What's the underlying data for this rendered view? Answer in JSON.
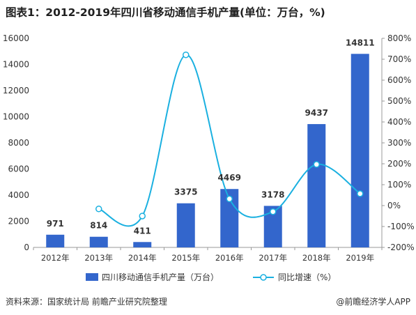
{
  "title": "图表1：2012-2019年四川省移动通信手机产量(单位：万台，%)",
  "footer": {
    "source": "资料来源：国家统计局 前瞻产业研究院整理",
    "credit": "@前瞻经济学人APP"
  },
  "colors": {
    "bar": "#3366cc",
    "line": "#1ab0e0"
  },
  "chart_data": {
    "type": "bar",
    "categories": [
      "2012年",
      "2013年",
      "2014年",
      "2015年",
      "2016年",
      "2017年",
      "2018年",
      "2019年"
    ],
    "series": [
      {
        "name": "四川移动通信手机产量（万台）",
        "type": "bar",
        "axis": "left",
        "values": [
          971,
          814,
          411,
          3375,
          4469,
          3178,
          9437,
          14811
        ],
        "labels": [
          "971",
          "814",
          "411",
          "3375",
          "4469",
          "3178",
          "9437",
          "14811"
        ]
      },
      {
        "name": "同比增速（%）",
        "type": "line",
        "axis": "right",
        "values": [
          null,
          -16,
          -50,
          721,
          32,
          -29,
          197,
          57
        ]
      }
    ],
    "y_left": {
      "min": 0,
      "max": 16000,
      "ticks": [
        "0",
        "2000",
        "4000",
        "6000",
        "8000",
        "10000",
        "12000",
        "14000",
        "16000"
      ]
    },
    "y_right": {
      "min": -200,
      "max": 800,
      "ticks": [
        "-200%",
        "-100%",
        "0%",
        "100%",
        "200%",
        "300%",
        "400%",
        "500%",
        "600%",
        "700%",
        "800%"
      ]
    },
    "legend": "bottom-center",
    "grid": false
  }
}
